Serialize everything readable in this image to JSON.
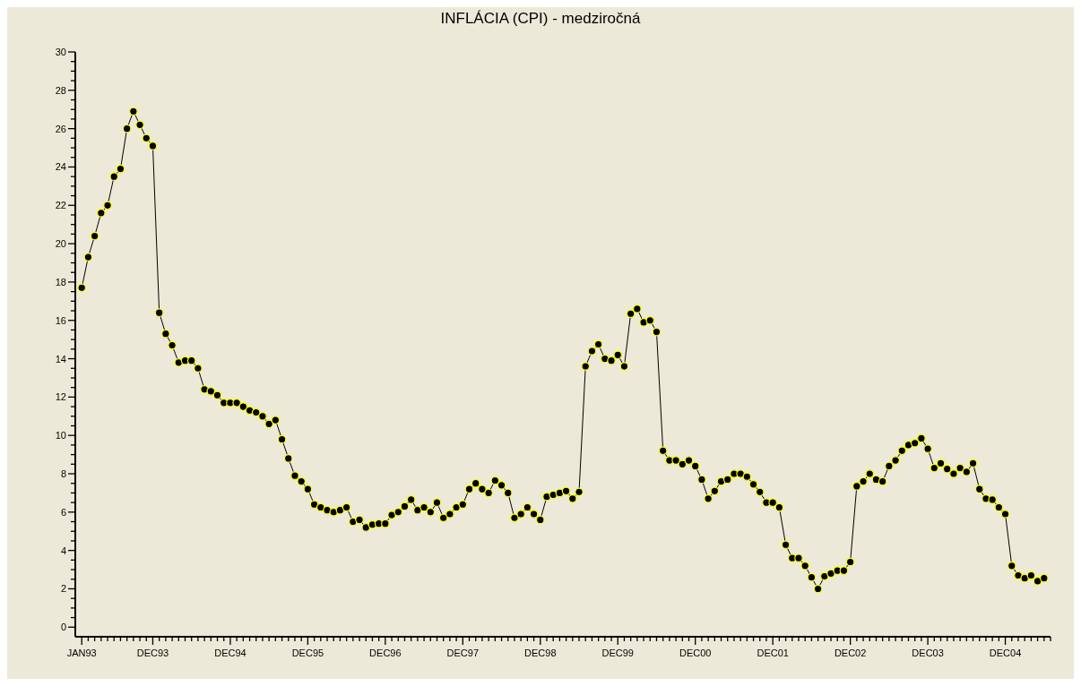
{
  "chart_data": {
    "type": "line",
    "title": "INFLÁCIA (CPI) - medziročná",
    "x": [
      "1993-01",
      "1993-02",
      "1993-03",
      "1993-04",
      "1993-05",
      "1993-06",
      "1993-07",
      "1993-08",
      "1993-09",
      "1993-10",
      "1993-11",
      "1993-12",
      "1994-01",
      "1994-02",
      "1994-03",
      "1994-04",
      "1994-05",
      "1994-06",
      "1994-07",
      "1994-08",
      "1994-09",
      "1994-10",
      "1994-11",
      "1994-12",
      "1995-01",
      "1995-02",
      "1995-03",
      "1995-04",
      "1995-05",
      "1995-06",
      "1995-07",
      "1995-08",
      "1995-09",
      "1995-10",
      "1995-11",
      "1995-12",
      "1996-01",
      "1996-02",
      "1996-03",
      "1996-04",
      "1996-05",
      "1996-06",
      "1996-07",
      "1996-08",
      "1996-09",
      "1996-10",
      "1996-11",
      "1996-12",
      "1997-01",
      "1997-02",
      "1997-03",
      "1997-04",
      "1997-05",
      "1997-06",
      "1997-07",
      "1997-08",
      "1997-09",
      "1997-10",
      "1997-11",
      "1997-12",
      "1998-01",
      "1998-02",
      "1998-03",
      "1998-04",
      "1998-05",
      "1998-06",
      "1998-07",
      "1998-08",
      "1998-09",
      "1998-10",
      "1998-11",
      "1998-12",
      "1999-01",
      "1999-02",
      "1999-03",
      "1999-04",
      "1999-05",
      "1999-06",
      "1999-07",
      "1999-08",
      "1999-09",
      "1999-10",
      "1999-11",
      "1999-12",
      "2000-01",
      "2000-02",
      "2000-03",
      "2000-04",
      "2000-05",
      "2000-06",
      "2000-07",
      "2000-08",
      "2000-09",
      "2000-10",
      "2000-11",
      "2000-12",
      "2001-01",
      "2001-02",
      "2001-03",
      "2001-04",
      "2001-05",
      "2001-06",
      "2001-07",
      "2001-08",
      "2001-09",
      "2001-10",
      "2001-11",
      "2001-12",
      "2002-01",
      "2002-02",
      "2002-03",
      "2002-04",
      "2002-05",
      "2002-06",
      "2002-07",
      "2002-08",
      "2002-09",
      "2002-10",
      "2002-11",
      "2002-12",
      "2003-01",
      "2003-02",
      "2003-03",
      "2003-04",
      "2003-05",
      "2003-06",
      "2003-07",
      "2003-08",
      "2003-09",
      "2003-10",
      "2003-11",
      "2003-12",
      "2004-01",
      "2004-02",
      "2004-03",
      "2004-04",
      "2004-05",
      "2004-06",
      "2004-07",
      "2004-08",
      "2004-09",
      "2004-10",
      "2004-11",
      "2004-12",
      "2005-01",
      "2005-02",
      "2005-03",
      "2005-04",
      "2005-05",
      "2005-06"
    ],
    "values": [
      17.7,
      19.3,
      20.4,
      21.6,
      22.0,
      23.5,
      23.9,
      26.0,
      26.9,
      26.2,
      25.5,
      25.1,
      16.4,
      15.3,
      14.7,
      13.8,
      13.9,
      13.9,
      13.5,
      12.4,
      12.3,
      12.1,
      11.7,
      11.7,
      11.7,
      11.5,
      11.3,
      11.2,
      11.0,
      10.6,
      10.8,
      9.8,
      8.8,
      7.9,
      7.6,
      7.2,
      6.4,
      6.25,
      6.1,
      6.0,
      6.1,
      6.25,
      5.5,
      5.6,
      5.2,
      5.35,
      5.4,
      5.4,
      5.85,
      6.0,
      6.3,
      6.65,
      6.1,
      6.25,
      6.0,
      6.5,
      5.7,
      5.9,
      6.25,
      6.4,
      7.2,
      7.5,
      7.2,
      7.0,
      7.65,
      7.4,
      7.0,
      5.7,
      5.9,
      6.25,
      5.9,
      5.6,
      6.8,
      6.9,
      7.0,
      7.1,
      6.7,
      7.05,
      13.6,
      14.4,
      14.75,
      14.0,
      13.9,
      14.2,
      13.6,
      16.35,
      16.6,
      15.9,
      16.0,
      15.4,
      9.2,
      8.7,
      8.7,
      8.5,
      8.7,
      8.4,
      7.7,
      6.7,
      7.1,
      7.6,
      7.7,
      8.0,
      8.0,
      7.85,
      7.45,
      7.05,
      6.5,
      6.5,
      6.25,
      4.3,
      3.6,
      3.6,
      3.2,
      2.6,
      2.0,
      2.65,
      2.8,
      2.95,
      2.95,
      3.4,
      7.35,
      7.6,
      8.0,
      7.7,
      7.6,
      8.4,
      8.7,
      9.2,
      9.5,
      9.6,
      9.85,
      9.3,
      8.3,
      8.55,
      8.25,
      8.0,
      8.3,
      8.1,
      8.55,
      7.2,
      6.7,
      6.65,
      6.25,
      5.9,
      3.2,
      2.7,
      2.55,
      2.7,
      2.4,
      2.55
    ],
    "color": "#000000",
    "marker": "circle",
    "xlim": [
      "1992-12",
      "2005-07"
    ],
    "xticks": [
      {
        "value": "1993-01",
        "label": "JAN93"
      },
      {
        "value": "1993-02",
        "label": null
      },
      {
        "value": "1993-03",
        "label": null
      },
      {
        "value": "1993-04",
        "label": null
      },
      {
        "value": "1993-05",
        "label": null
      },
      {
        "value": "1993-06",
        "label": null
      },
      {
        "value": "1993-07",
        "label": null
      },
      {
        "value": "1993-08",
        "label": null
      },
      {
        "value": "1993-09",
        "label": null
      },
      {
        "value": "1993-10",
        "label": null
      },
      {
        "value": "1993-11",
        "label": null
      },
      {
        "value": "1993-12",
        "label": "DEC93"
      },
      {
        "value": "1994-01",
        "label": null
      },
      {
        "value": "1994-02",
        "label": null
      },
      {
        "value": "1994-03",
        "label": null
      },
      {
        "value": "1994-04",
        "label": null
      },
      {
        "value": "1994-05",
        "label": null
      },
      {
        "value": "1994-06",
        "label": null
      },
      {
        "value": "1994-07",
        "label": null
      },
      {
        "value": "1994-08",
        "label": null
      },
      {
        "value": "1994-09",
        "label": null
      },
      {
        "value": "1994-10",
        "label": null
      },
      {
        "value": "1994-11",
        "label": null
      },
      {
        "value": "1994-12",
        "label": "DEC94"
      },
      {
        "value": "1995-01",
        "label": null
      },
      {
        "value": "1995-02",
        "label": null
      },
      {
        "value": "1995-03",
        "label": null
      },
      {
        "value": "1995-04",
        "label": null
      },
      {
        "value": "1995-05",
        "label": null
      },
      {
        "value": "1995-06",
        "label": null
      },
      {
        "value": "1995-07",
        "label": null
      },
      {
        "value": "1995-08",
        "label": null
      },
      {
        "value": "1995-09",
        "label": null
      },
      {
        "value": "1995-10",
        "label": null
      },
      {
        "value": "1995-11",
        "label": null
      },
      {
        "value": "1995-12",
        "label": "DEC95"
      },
      {
        "value": "1996-01",
        "label": null
      },
      {
        "value": "1996-02",
        "label": null
      },
      {
        "value": "1996-03",
        "label": null
      },
      {
        "value": "1996-04",
        "label": null
      },
      {
        "value": "1996-05",
        "label": null
      },
      {
        "value": "1996-06",
        "label": null
      },
      {
        "value": "1996-07",
        "label": null
      },
      {
        "value": "1996-08",
        "label": null
      },
      {
        "value": "1996-09",
        "label": null
      },
      {
        "value": "1996-10",
        "label": null
      },
      {
        "value": "1996-11",
        "label": null
      },
      {
        "value": "1996-12",
        "label": "DEC96"
      },
      {
        "value": "1997-01",
        "label": null
      },
      {
        "value": "1997-02",
        "label": null
      },
      {
        "value": "1997-03",
        "label": null
      },
      {
        "value": "1997-04",
        "label": null
      },
      {
        "value": "1997-05",
        "label": null
      },
      {
        "value": "1997-06",
        "label": null
      },
      {
        "value": "1997-07",
        "label": null
      },
      {
        "value": "1997-08",
        "label": null
      },
      {
        "value": "1997-09",
        "label": null
      },
      {
        "value": "1997-10",
        "label": null
      },
      {
        "value": "1997-11",
        "label": null
      },
      {
        "value": "1997-12",
        "label": "DEC97"
      },
      {
        "value": "1998-01",
        "label": null
      },
      {
        "value": "1998-02",
        "label": null
      },
      {
        "value": "1998-03",
        "label": null
      },
      {
        "value": "1998-04",
        "label": null
      },
      {
        "value": "1998-05",
        "label": null
      },
      {
        "value": "1998-06",
        "label": null
      },
      {
        "value": "1998-07",
        "label": null
      },
      {
        "value": "1998-08",
        "label": null
      },
      {
        "value": "1998-09",
        "label": null
      },
      {
        "value": "1998-10",
        "label": null
      },
      {
        "value": "1998-11",
        "label": null
      },
      {
        "value": "1998-12",
        "label": "DEC98"
      },
      {
        "value": "1999-01",
        "label": null
      },
      {
        "value": "1999-02",
        "label": null
      },
      {
        "value": "1999-03",
        "label": null
      },
      {
        "value": "1999-04",
        "label": null
      },
      {
        "value": "1999-05",
        "label": null
      },
      {
        "value": "1999-06",
        "label": null
      },
      {
        "value": "1999-07",
        "label": null
      },
      {
        "value": "1999-08",
        "label": null
      },
      {
        "value": "1999-09",
        "label": null
      },
      {
        "value": "1999-10",
        "label": null
      },
      {
        "value": "1999-11",
        "label": null
      },
      {
        "value": "1999-12",
        "label": "DEC99"
      },
      {
        "value": "2000-01",
        "label": null
      },
      {
        "value": "2000-02",
        "label": null
      },
      {
        "value": "2000-03",
        "label": null
      },
      {
        "value": "2000-04",
        "label": null
      },
      {
        "value": "2000-05",
        "label": null
      },
      {
        "value": "2000-06",
        "label": null
      },
      {
        "value": "2000-07",
        "label": null
      },
      {
        "value": "2000-08",
        "label": null
      },
      {
        "value": "2000-09",
        "label": null
      },
      {
        "value": "2000-10",
        "label": null
      },
      {
        "value": "2000-11",
        "label": null
      },
      {
        "value": "2000-12",
        "label": "DEC00"
      },
      {
        "value": "2001-01",
        "label": null
      },
      {
        "value": "2001-02",
        "label": null
      },
      {
        "value": "2001-03",
        "label": null
      },
      {
        "value": "2001-04",
        "label": null
      },
      {
        "value": "2001-05",
        "label": null
      },
      {
        "value": "2001-06",
        "label": null
      },
      {
        "value": "2001-07",
        "label": null
      },
      {
        "value": "2001-08",
        "label": null
      },
      {
        "value": "2001-09",
        "label": null
      },
      {
        "value": "2001-10",
        "label": null
      },
      {
        "value": "2001-11",
        "label": null
      },
      {
        "value": "2001-12",
        "label": "DEC01"
      },
      {
        "value": "2002-01",
        "label": null
      },
      {
        "value": "2002-02",
        "label": null
      },
      {
        "value": "2002-03",
        "label": null
      },
      {
        "value": "2002-04",
        "label": null
      },
      {
        "value": "2002-05",
        "label": null
      },
      {
        "value": "2002-06",
        "label": null
      },
      {
        "value": "2002-07",
        "label": null
      },
      {
        "value": "2002-08",
        "label": null
      },
      {
        "value": "2002-09",
        "label": null
      },
      {
        "value": "2002-10",
        "label": null
      },
      {
        "value": "2002-11",
        "label": null
      },
      {
        "value": "2002-12",
        "label": "DEC02"
      },
      {
        "value": "2003-01",
        "label": null
      },
      {
        "value": "2003-02",
        "label": null
      },
      {
        "value": "2003-03",
        "label": null
      },
      {
        "value": "2003-04",
        "label": null
      },
      {
        "value": "2003-05",
        "label": null
      },
      {
        "value": "2003-06",
        "label": null
      },
      {
        "value": "2003-07",
        "label": null
      },
      {
        "value": "2003-08",
        "label": null
      },
      {
        "value": "2003-09",
        "label": null
      },
      {
        "value": "2003-10",
        "label": null
      },
      {
        "value": "2003-11",
        "label": null
      },
      {
        "value": "2003-12",
        "label": "DEC03"
      },
      {
        "value": "2004-01",
        "label": null
      },
      {
        "value": "2004-02",
        "label": null
      },
      {
        "value": "2004-03",
        "label": null
      },
      {
        "value": "2004-04",
        "label": null
      },
      {
        "value": "2004-05",
        "label": null
      },
      {
        "value": "2004-06",
        "label": null
      },
      {
        "value": "2004-07",
        "label": null
      },
      {
        "value": "2004-08",
        "label": null
      },
      {
        "value": "2004-09",
        "label": null
      },
      {
        "value": "2004-10",
        "label": null
      },
      {
        "value": "2004-11",
        "label": null
      },
      {
        "value": "2004-12",
        "label": "DEC04"
      },
      {
        "value": "2005-01",
        "label": null
      },
      {
        "value": "2005-02",
        "label": null
      },
      {
        "value": "2005-03",
        "label": null
      },
      {
        "value": "2005-04",
        "label": null
      },
      {
        "value": "2005-05",
        "label": null
      },
      {
        "value": "2005-06",
        "label": null
      },
      {
        "value": "2005-07",
        "label": null
      }
    ],
    "ylim": [
      -0.5,
      30
    ],
    "yticks": [
      0,
      {
        "value": 0.5,
        "label": null
      },
      {
        "value": 1,
        "label": null
      },
      {
        "value": 1.5,
        "label": null
      },
      2,
      {
        "value": 2.5,
        "label": null
      },
      {
        "value": 3,
        "label": null
      },
      {
        "value": 3.5,
        "label": null
      },
      4,
      {
        "value": 4.5,
        "label": null
      },
      {
        "value": 5,
        "label": null
      },
      {
        "value": 5.5,
        "label": null
      },
      6,
      {
        "value": 6.5,
        "label": null
      },
      {
        "value": 7,
        "label": null
      },
      {
        "value": 7.5,
        "label": null
      },
      8,
      {
        "value": 8.5,
        "label": null
      },
      {
        "value": 9,
        "label": null
      },
      {
        "value": 9.5,
        "label": null
      },
      10,
      {
        "value": 10.5,
        "label": null
      },
      {
        "value": 11,
        "label": null
      },
      {
        "value": 11.5,
        "label": null
      },
      12,
      {
        "value": 12.5,
        "label": null
      },
      {
        "value": 13,
        "label": null
      },
      {
        "value": 13.5,
        "label": null
      },
      14,
      {
        "value": 14.5,
        "label": null
      },
      {
        "value": 15,
        "label": null
      },
      {
        "value": 15.5,
        "label": null
      },
      16,
      {
        "value": 16.5,
        "label": null
      },
      {
        "value": 17,
        "label": null
      },
      {
        "value": 17.5,
        "label": null
      },
      18,
      {
        "value": 18.5,
        "label": null
      },
      {
        "value": 19,
        "label": null
      },
      {
        "value": 19.5,
        "label": null
      },
      20,
      {
        "value": 20.5,
        "label": null
      },
      {
        "value": 21,
        "label": null
      },
      {
        "value": 21.5,
        "label": null
      },
      22,
      {
        "value": 22.5,
        "label": null
      },
      {
        "value": 23,
        "label": null
      },
      {
        "value": 23.5,
        "label": null
      },
      24,
      {
        "value": 24.5,
        "label": null
      },
      {
        "value": 25,
        "label": null
      },
      {
        "value": 25.5,
        "label": null
      },
      26,
      {
        "value": 26.5,
        "label": null
      },
      {
        "value": 27,
        "label": null
      },
      {
        "value": 27.5,
        "label": null
      },
      28,
      {
        "value": 28.5,
        "label": null
      },
      {
        "value": 29,
        "label": null
      },
      {
        "value": 29.5,
        "label": null
      },
      30
    ]
  }
}
